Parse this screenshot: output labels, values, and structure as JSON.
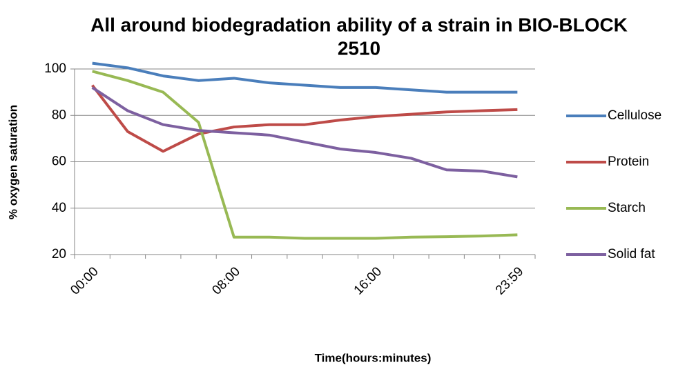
{
  "chart_data": {
    "type": "line",
    "title": "All around biodegradation ability of a strain in BIO-BLOCK 2510",
    "x_label": "Time(hours:minutes)",
    "y_label": "% oxygen saturation",
    "categories": [
      "00:00",
      null,
      null,
      null,
      "08:00",
      null,
      null,
      null,
      "16:00",
      null,
      null,
      null,
      "23:59"
    ],
    "series": [
      {
        "name": "Cellulose",
        "color": "#4a7ebb",
        "values": [
          102.5,
          100.5,
          97,
          95,
          96,
          94,
          93,
          92,
          92,
          91,
          90,
          90,
          90
        ]
      },
      {
        "name": "Protein",
        "color": "#be4b48",
        "values": [
          93,
          73,
          64.5,
          72,
          75,
          76,
          76,
          78,
          79.5,
          80.5,
          81.5,
          82,
          82.5
        ]
      },
      {
        "name": "Starch",
        "color": "#98b954",
        "values": [
          99,
          95,
          90,
          77,
          27.5,
          27.5,
          27,
          27,
          27,
          27.5,
          27.7,
          28,
          28.5
        ]
      },
      {
        "name": "Solid fat",
        "color": "#7d60a0",
        "values": [
          92,
          82,
          76,
          73.5,
          72.5,
          71.5,
          68.5,
          65.5,
          64,
          61.5,
          56.5,
          56,
          53.5
        ]
      }
    ],
    "ylim": [
      20,
      100
    ],
    "yticks": [
      20,
      40,
      60,
      80,
      100
    ],
    "grid": true,
    "legend": "right"
  }
}
